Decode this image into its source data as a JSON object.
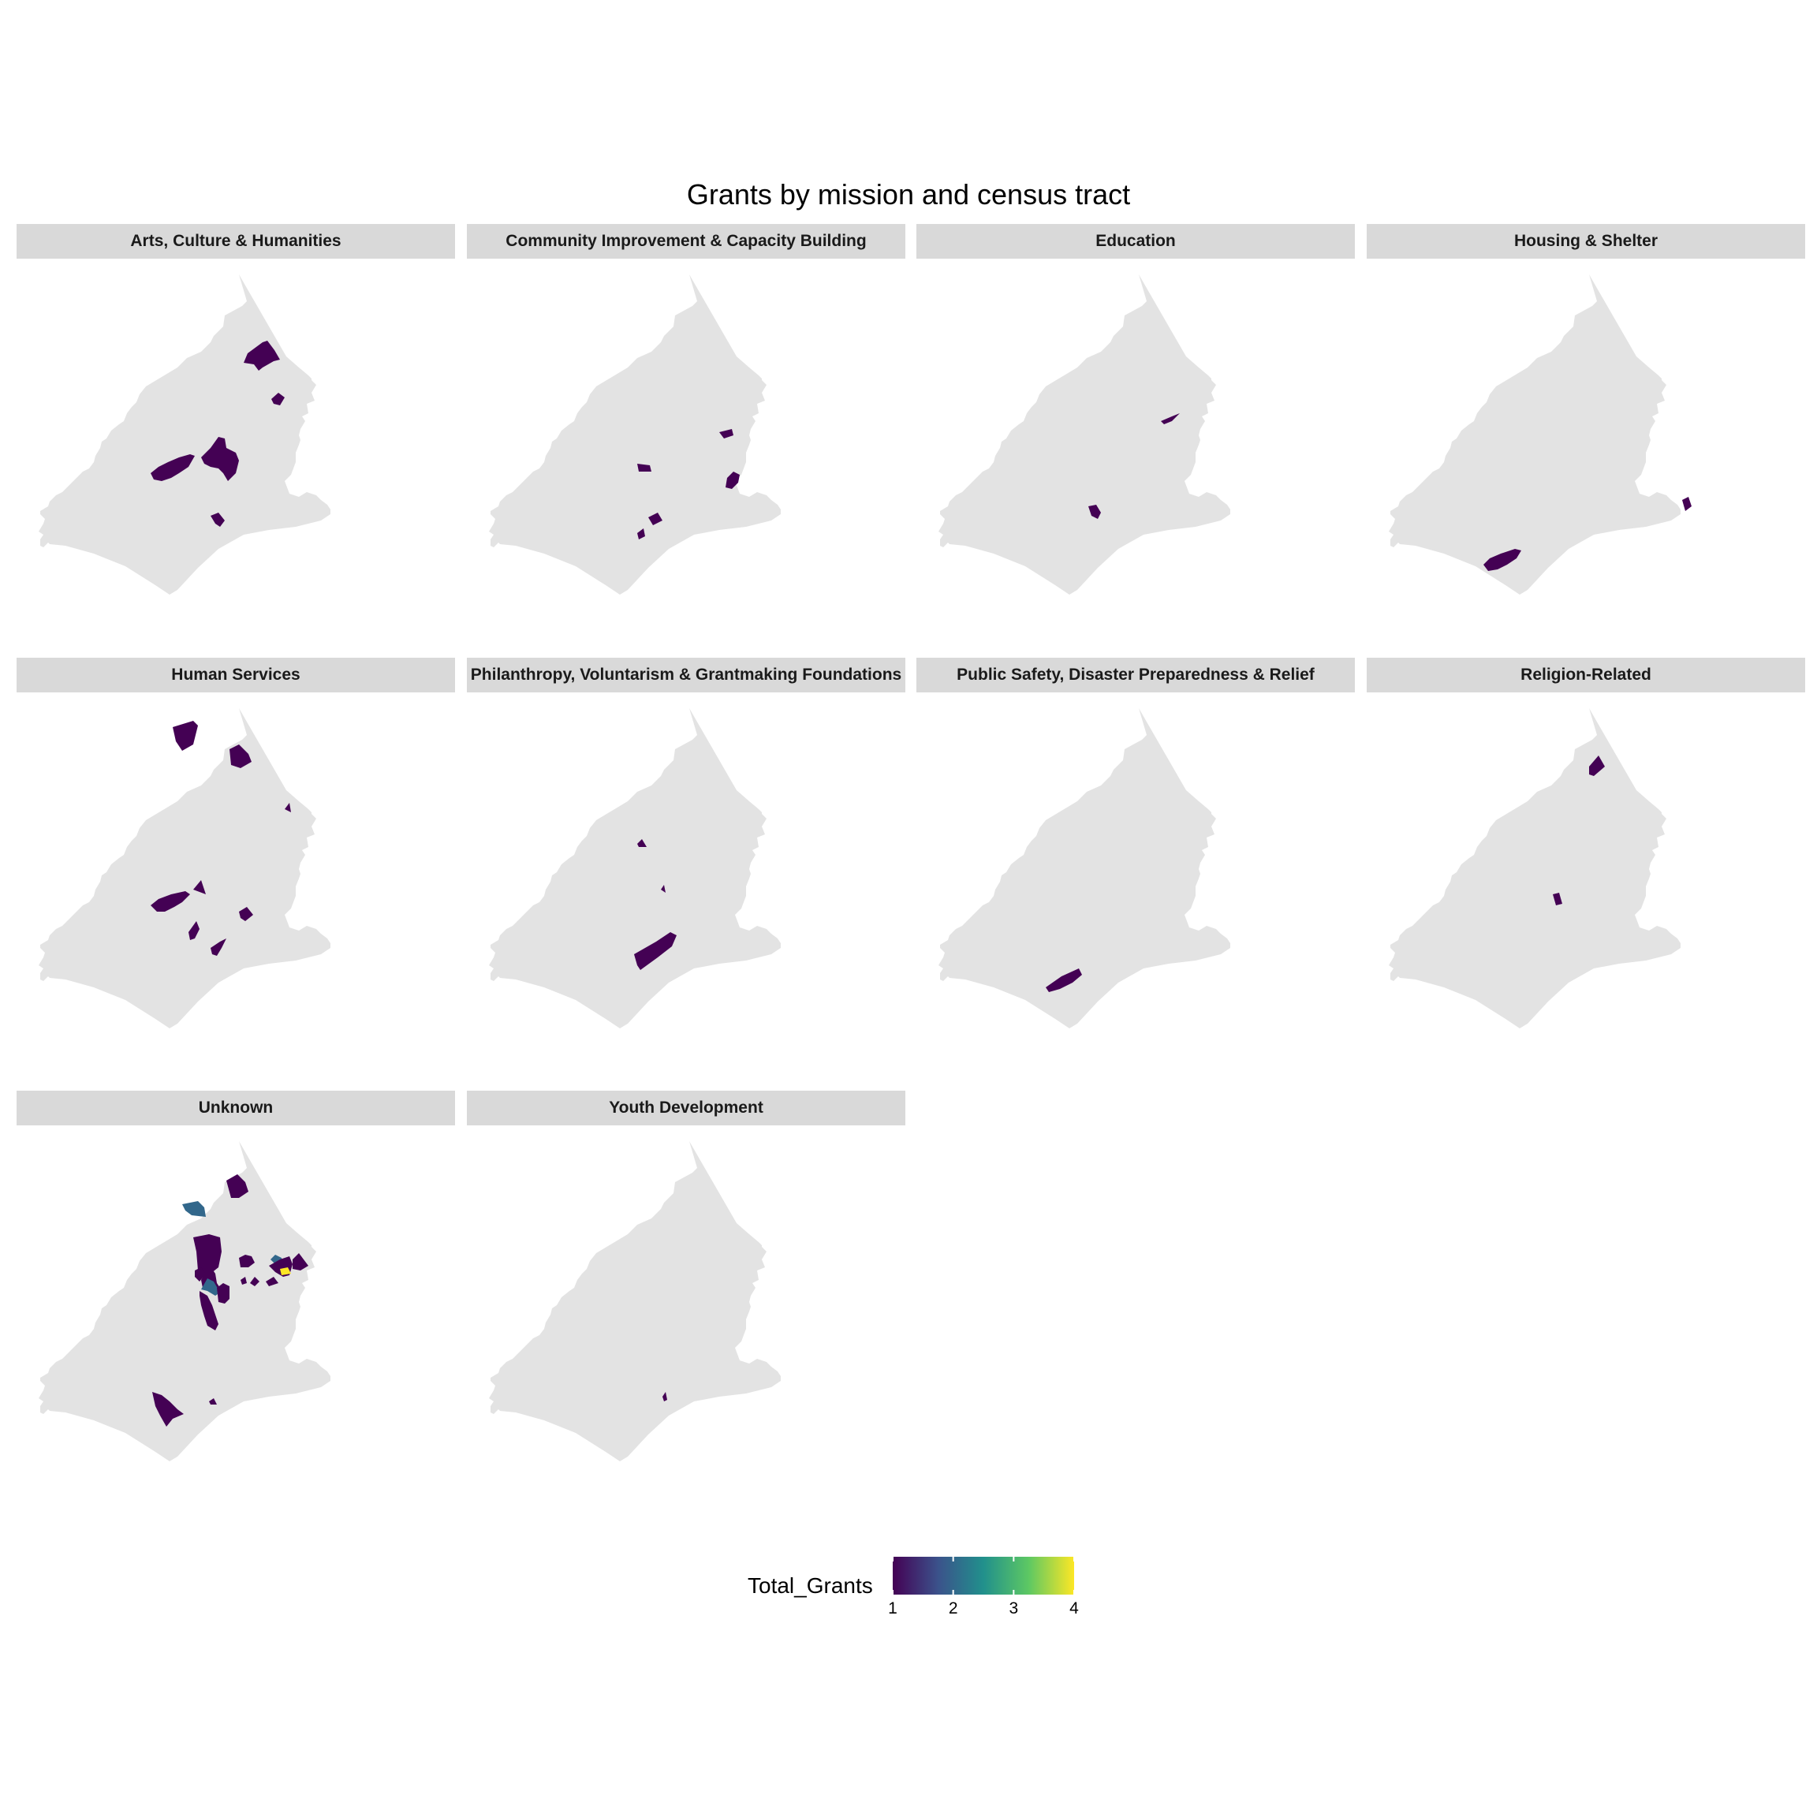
{
  "title": "Grants by mission and census tract",
  "colors": {
    "region": "#e3e3e3",
    "strip": "#d9d9d9",
    "viridis": [
      "#440154",
      "#3b528b",
      "#21908c",
      "#5dc863",
      "#fde725"
    ]
  },
  "chart_data": {
    "type": "choropleth_facets",
    "facets": [
      {
        "label": "Arts, Culture & Humanities",
        "tracts": [
          1,
          1,
          1,
          1,
          1
        ]
      },
      {
        "label": "Community Improvement & Capacity Building",
        "tracts": [
          1,
          1,
          1,
          1,
          1
        ]
      },
      {
        "label": "Education",
        "tracts": [
          1,
          1
        ]
      },
      {
        "label": "Housing & Shelter",
        "tracts": [
          1,
          1
        ]
      },
      {
        "label": "Human Services",
        "tracts": [
          1,
          1,
          1,
          1,
          1,
          1,
          1,
          1
        ]
      },
      {
        "label": "Philanthropy, Voluntarism & Grantmaking Foundations",
        "tracts": [
          1,
          1,
          1
        ]
      },
      {
        "label": "Public Safety, Disaster Preparedness & Relief",
        "tracts": [
          1
        ]
      },
      {
        "label": "Religion-Related",
        "tracts": [
          1,
          1
        ]
      },
      {
        "label": "Unknown",
        "tracts": [
          1,
          2,
          1,
          1,
          1,
          2,
          1,
          4,
          1,
          1,
          2,
          1,
          1,
          1,
          1
        ]
      },
      {
        "label": "Youth Development",
        "tracts": [
          1
        ]
      }
    ],
    "legend": {
      "title": "Total_Grants",
      "min": 1,
      "max": 4,
      "ticks": [
        "1",
        "2",
        "3",
        "4"
      ],
      "palette": "viridis"
    }
  }
}
